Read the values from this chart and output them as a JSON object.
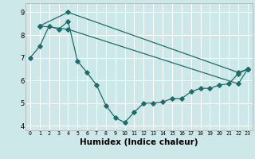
{
  "xlabel": "Humidex (Indice chaleur)",
  "bg_color": "#cce8e8",
  "grid_color": "#ffffff",
  "line_color": "#1a6e6a",
  "line1_x": [
    0,
    1,
    2,
    3,
    4,
    5,
    6,
    7,
    8,
    9,
    10,
    11,
    12,
    13,
    14,
    15,
    16,
    17,
    18,
    19,
    20,
    21,
    22,
    23
  ],
  "line1_y": [
    7.0,
    7.5,
    8.4,
    8.25,
    8.6,
    6.85,
    6.35,
    5.8,
    4.9,
    4.35,
    4.15,
    4.6,
    5.0,
    5.0,
    5.05,
    5.2,
    5.2,
    5.5,
    5.65,
    5.65,
    5.8,
    5.85,
    6.3,
    6.5
  ],
  "line2_x": [
    1,
    4,
    22,
    23
  ],
  "line2_y": [
    8.4,
    9.0,
    6.35,
    6.5
  ],
  "line3_x": [
    1,
    4,
    22,
    23
  ],
  "line3_y": [
    8.4,
    8.25,
    5.85,
    6.5
  ],
  "xlim": [
    -0.5,
    23.5
  ],
  "ylim": [
    3.8,
    9.4
  ],
  "yticks": [
    4,
    5,
    6,
    7,
    8,
    9
  ],
  "xticks": [
    0,
    1,
    2,
    3,
    4,
    5,
    6,
    7,
    8,
    9,
    10,
    11,
    12,
    13,
    14,
    15,
    16,
    17,
    18,
    19,
    20,
    21,
    22,
    23
  ]
}
